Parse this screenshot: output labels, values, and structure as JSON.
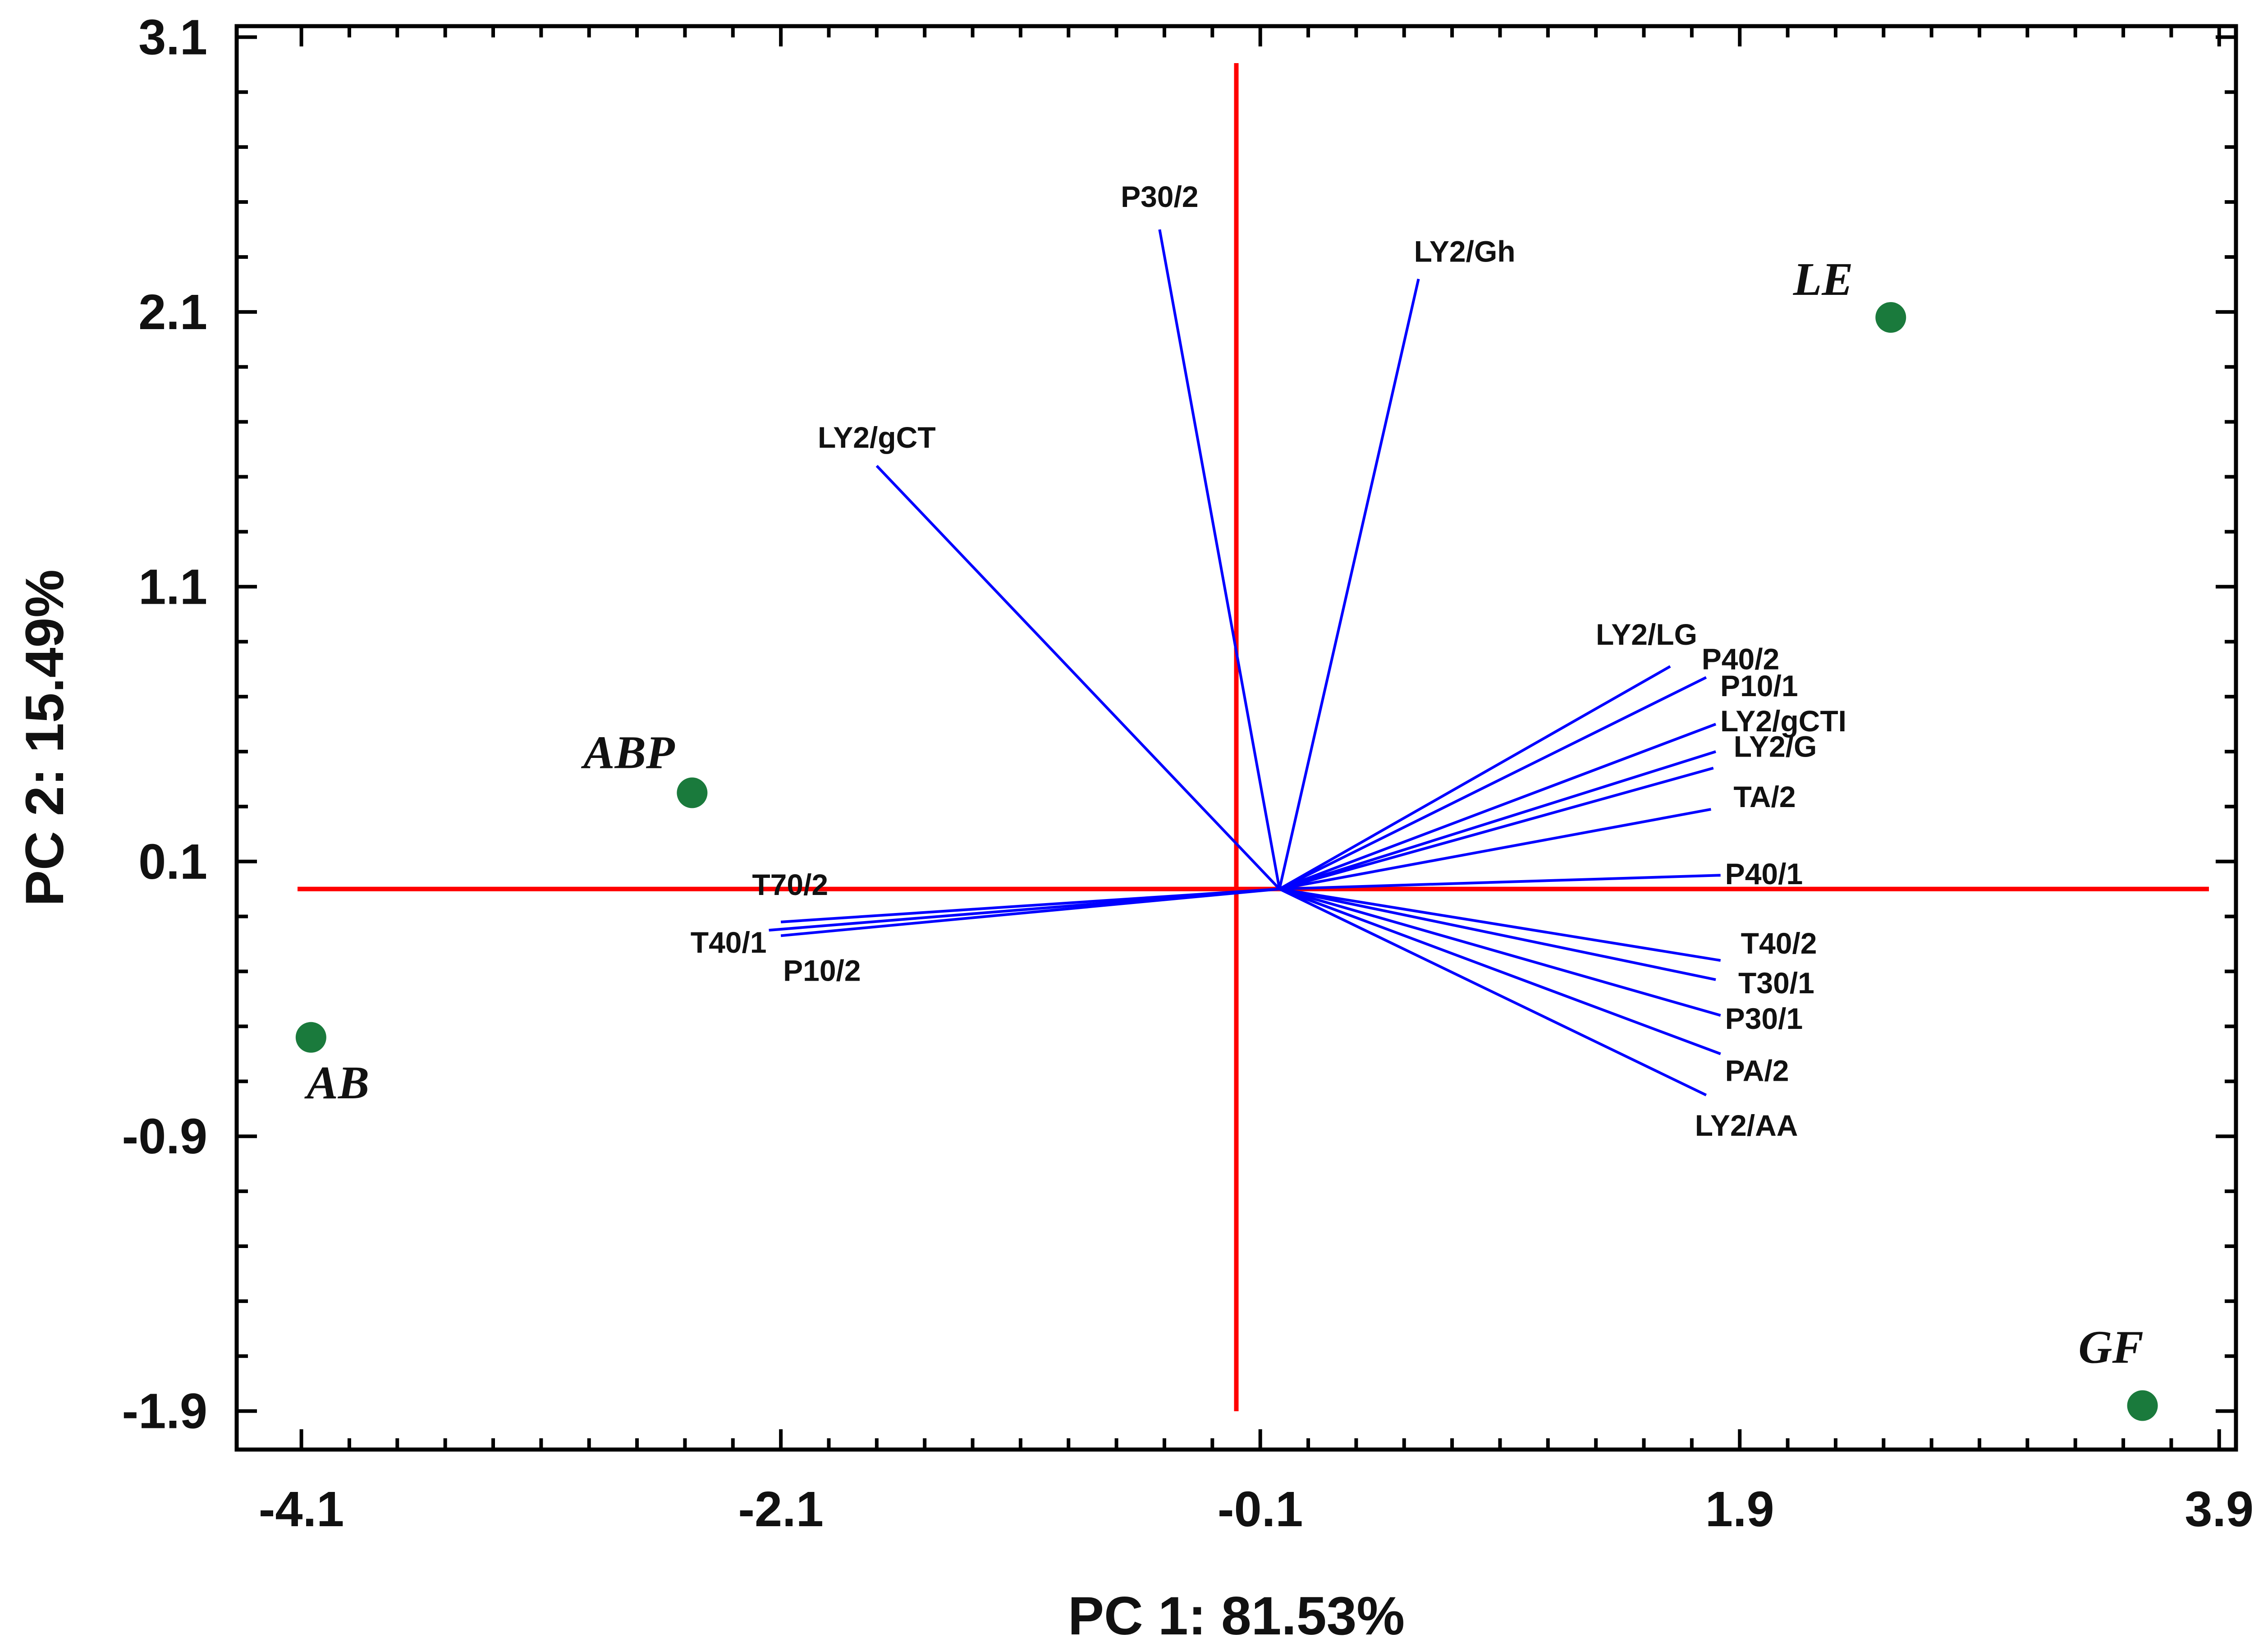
{
  "chart_data": {
    "type": "scatter",
    "subtype": "PCA biplot",
    "title": "",
    "xlabel": "PC 1: 81.53%",
    "ylabel": "PC 2: 15.49%",
    "xlim": [
      -4.37,
      3.97
    ],
    "ylim": [
      -2.04,
      3.14
    ],
    "x_ticks": [
      "-4.1",
      "-2.1",
      "-0.1",
      "1.9",
      "3.9"
    ],
    "y_ticks": [
      "3.1",
      "2.1",
      "1.1",
      "0.1",
      "-0.9",
      "-1.9"
    ],
    "reference_lines": {
      "x": -0.2,
      "y": 0.0
    },
    "colors": {
      "axes": "#000000",
      "reference": "#ff0000",
      "loadings": "#0000ff",
      "scores": "#1a7a3c"
    },
    "scores": [
      {
        "label": "LE",
        "x": 2.53,
        "y": 2.08
      },
      {
        "label": "ABP",
        "x": -2.47,
        "y": 0.35
      },
      {
        "label": "AB",
        "x": -4.06,
        "y": -0.54
      },
      {
        "label": "GF",
        "x": 3.58,
        "y": -1.88
      }
    ],
    "loadings": [
      {
        "label": "P30/2",
        "x": -0.52,
        "y": 2.4
      },
      {
        "label": "LY2/Gh",
        "x": 0.56,
        "y": 2.22
      },
      {
        "label": "LY2/gCT",
        "x": -1.7,
        "y": 1.54
      },
      {
        "label": "LY2/LG",
        "x": 1.61,
        "y": 0.81
      },
      {
        "label": "P40/2",
        "x": 1.76,
        "y": 0.77
      },
      {
        "label": "P10/1",
        "x": 1.8,
        "y": 0.6
      },
      {
        "label": "LY2/gCTI",
        "x": 1.8,
        "y": 0.5
      },
      {
        "label": "LY2/G",
        "x": 1.79,
        "y": 0.44
      },
      {
        "label": "TA/2",
        "x": 1.78,
        "y": 0.29
      },
      {
        "label": "P40/1",
        "x": 1.82,
        "y": 0.05
      },
      {
        "label": "T70/2",
        "x": -2.1,
        "y": -0.12
      },
      {
        "label": "T40/1",
        "x": -2.15,
        "y": -0.15
      },
      {
        "label": "P10/2",
        "x": -2.1,
        "y": -0.17
      },
      {
        "label": "T40/2",
        "x": 1.82,
        "y": -0.26
      },
      {
        "label": "T30/1",
        "x": 1.8,
        "y": -0.33
      },
      {
        "label": "P30/1",
        "x": 1.82,
        "y": -0.46
      },
      {
        "label": "PA/2",
        "x": 1.82,
        "y": -0.6
      },
      {
        "label": "LY2/AA",
        "x": 1.76,
        "y": -0.75
      }
    ]
  }
}
